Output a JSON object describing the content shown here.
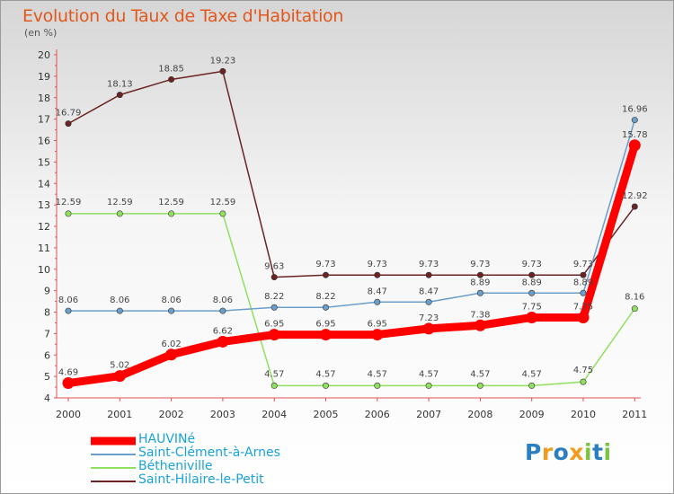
{
  "chart_data": {
    "type": "line",
    "title": "Evolution du Taux de Taxe d'Habitation",
    "subtitle": "(en %)",
    "categories": [
      "2000",
      "2001",
      "2002",
      "2003",
      "2004",
      "2005",
      "2006",
      "2007",
      "2008",
      "2009",
      "2010",
      "2011"
    ],
    "ylim": [
      4,
      20
    ],
    "yticks": [
      4,
      5,
      6,
      7,
      8,
      9,
      10,
      11,
      12,
      13,
      14,
      15,
      16,
      17,
      18,
      19,
      20
    ],
    "grid": false,
    "legend_position": "bottom-left",
    "series": [
      {
        "name": "HAUVINé",
        "color": "#ff0000",
        "values": [
          4.69,
          5.02,
          6.02,
          6.62,
          6.95,
          6.95,
          6.95,
          7.23,
          7.38,
          7.75,
          7.75,
          15.78
        ],
        "labels": [
          "4.69",
          "5.02",
          "6.02",
          "6.62",
          "6.95",
          "6.95",
          "6.95",
          "7.23",
          "7.38",
          "7.75",
          "7.75",
          "15.78"
        ]
      },
      {
        "name": "Saint-Clément-à-Arnes",
        "color": "#6a9ecb",
        "values": [
          8.06,
          8.06,
          8.06,
          8.06,
          8.22,
          8.22,
          8.47,
          8.47,
          8.89,
          8.89,
          8.89,
          16.96
        ],
        "labels": [
          "8.06",
          "8.06",
          "8.06",
          "8.06",
          "8.22",
          "8.22",
          "8.47",
          "8.47",
          "8.89",
          "8.89",
          "8.89",
          "16.96"
        ]
      },
      {
        "name": "Bétheniville",
        "color": "#90e05f",
        "values": [
          12.59,
          12.59,
          12.59,
          12.59,
          4.57,
          4.57,
          4.57,
          4.57,
          4.57,
          4.57,
          4.75,
          8.16
        ],
        "labels": [
          "12.59",
          "12.59",
          "12.59",
          "12.59",
          "4.57",
          "4.57",
          "4.57",
          "4.57",
          "4.57",
          "4.57",
          "4.75",
          "8.16"
        ]
      },
      {
        "name": "Saint-Hilaire-le-Petit",
        "color": "#6b2323",
        "values": [
          16.79,
          18.13,
          18.85,
          19.23,
          9.63,
          9.73,
          9.73,
          9.73,
          9.73,
          9.73,
          9.73,
          12.92
        ],
        "labels": [
          "16.79",
          "18.13",
          "18.85",
          "19.23",
          "9.63",
          "9.73",
          "9.73",
          "9.73",
          "9.73",
          "9.73",
          "9.73",
          "12.92"
        ]
      }
    ]
  },
  "logo": {
    "text": "Proxiti",
    "letters": [
      {
        "char": "P",
        "color": "#2b7fc0"
      },
      {
        "char": "r",
        "color": "#f29c1f"
      },
      {
        "char": "o",
        "color": "#2b7fc0"
      },
      {
        "char": "x",
        "color": "#f29c1f"
      },
      {
        "char": "i",
        "color": "#7cc243"
      },
      {
        "char": "t",
        "color": "#2b7fc0"
      },
      {
        "char": "i",
        "color": "#7cc243"
      }
    ]
  }
}
